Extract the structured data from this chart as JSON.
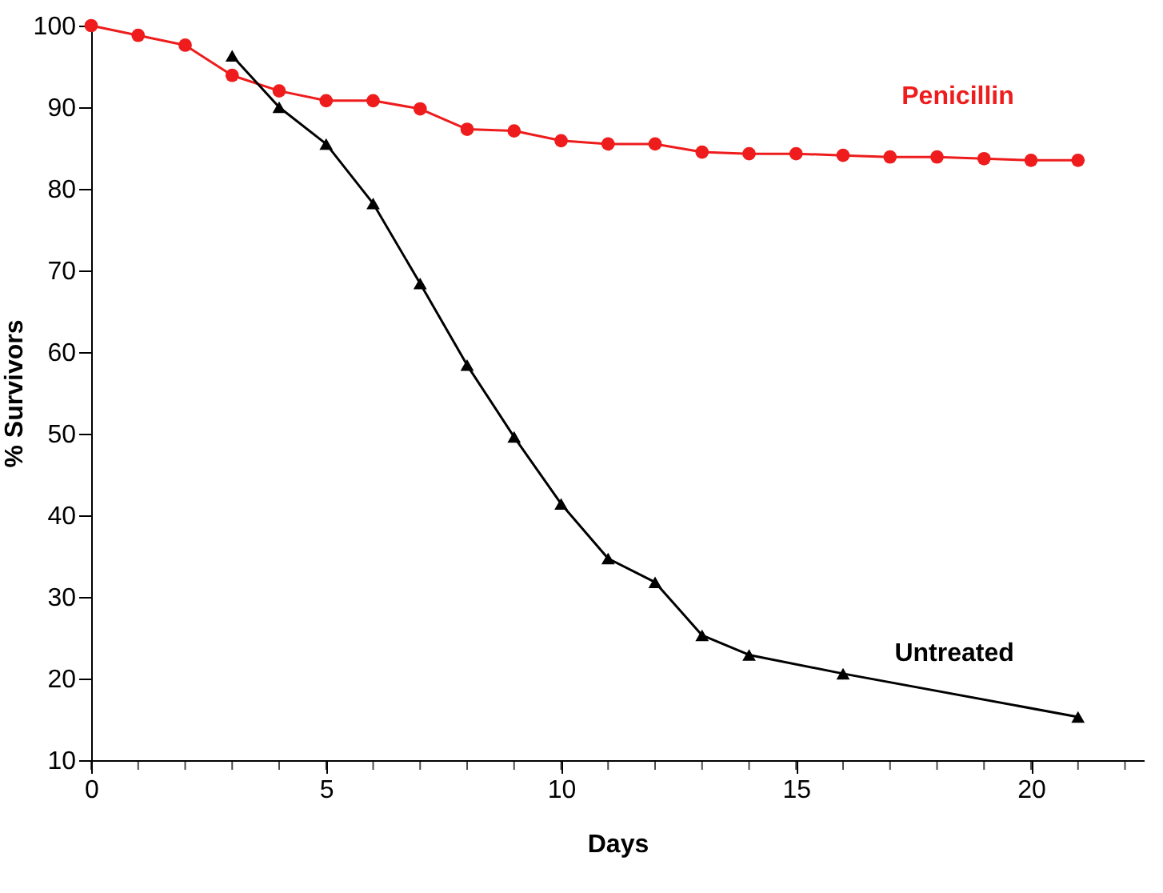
{
  "chart_data": {
    "type": "line",
    "xlabel": "Days",
    "ylabel": "% Survivors",
    "xlim": [
      0,
      22.4
    ],
    "xticks": [
      0,
      5,
      10,
      15,
      20
    ],
    "ylim": [
      10,
      100
    ],
    "yticks": [
      10,
      20,
      30,
      40,
      50,
      60,
      70,
      80,
      90,
      100
    ],
    "grid": false,
    "legend": false,
    "marker": "circle",
    "series": [
      {
        "name": "Penicillin",
        "color": "#ee1c1c",
        "marker": "circle",
        "x": [
          0,
          1,
          2,
          3,
          4,
          5,
          6,
          7,
          8,
          9,
          10,
          11,
          12,
          13,
          14,
          15,
          16,
          17,
          18,
          19,
          20,
          21
        ],
        "values": [
          100,
          98.8,
          97.6,
          93.9,
          92,
          90.8,
          90.8,
          89.8,
          87.3,
          87.1,
          85.9,
          85.5,
          85.5,
          84.5,
          84.3,
          84.3,
          84.1,
          83.9,
          83.9,
          83.7,
          83.5,
          83.5
        ]
      },
      {
        "name": "Untreated",
        "color": "#000000",
        "marker": "triangle",
        "x": [
          3,
          4,
          5,
          6,
          7,
          8,
          9,
          10,
          11,
          12,
          13,
          14,
          16,
          21
        ],
        "values": [
          96.3,
          90,
          85.5,
          78.2,
          68.4,
          58.4,
          49.6,
          41.4,
          34.7,
          31.8,
          25.3,
          22.9,
          20.6,
          15.3
        ]
      }
    ]
  }
}
